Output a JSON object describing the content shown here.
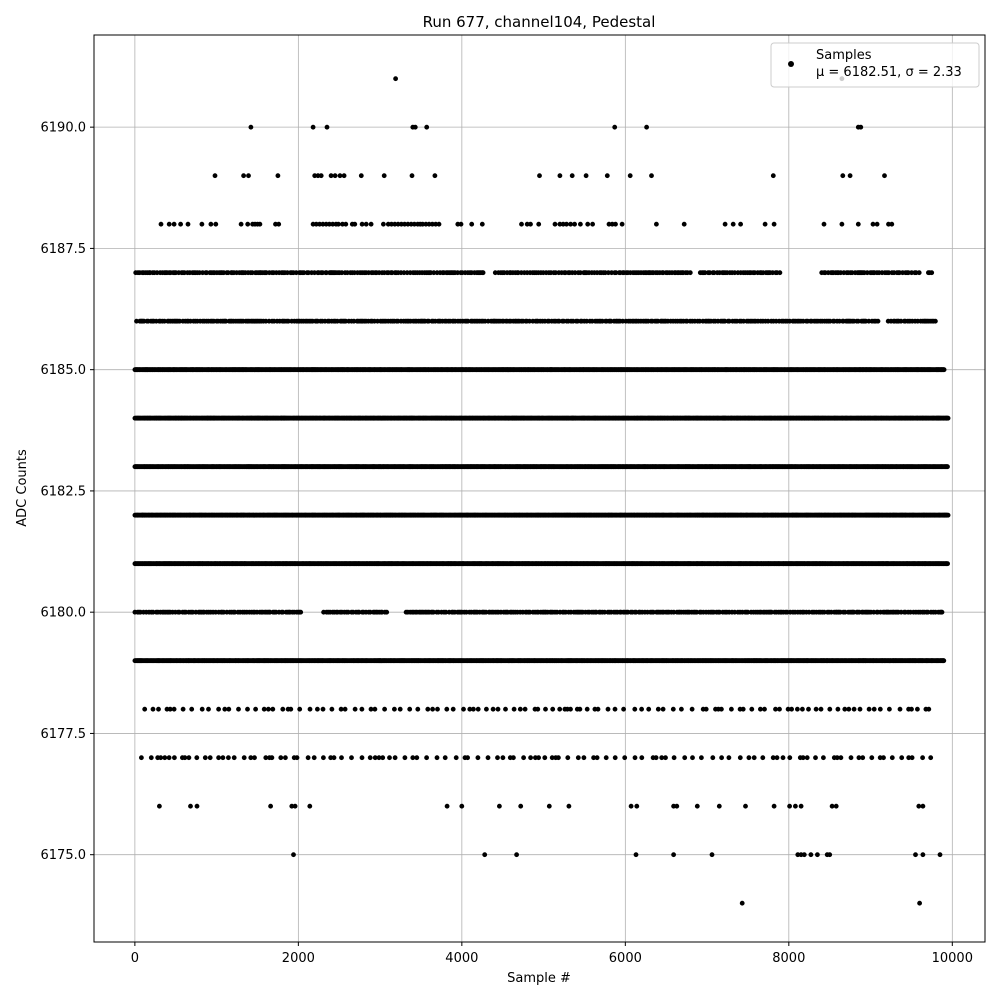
{
  "chart_data": {
    "type": "scatter",
    "title": "Run 677, channel104, Pedestal",
    "xlabel": "Sample #",
    "ylabel": "ADC Counts",
    "xlim": [
      -500,
      10400
    ],
    "ylim": [
      6173.2,
      6191.9
    ],
    "xticks": [
      0,
      2000,
      4000,
      6000,
      8000,
      10000
    ],
    "xtick_labels": [
      "0",
      "2000",
      "4000",
      "6000",
      "8000",
      "10000"
    ],
    "yticks": [
      6175.0,
      6177.5,
      6180.0,
      6182.5,
      6185.0,
      6187.5,
      6190.0
    ],
    "ytick_labels": [
      "6175.0",
      "6177.5",
      "6180.0",
      "6182.5",
      "6185.0",
      "6187.5",
      "6190.0"
    ],
    "grid": true,
    "legend_position": "top-right",
    "series": [
      {
        "name": "Samples",
        "color": "#000000",
        "marker": "circle",
        "stats_label": "μ = 6182.51, σ = 2.33",
        "n_samples": 10000,
        "levels": [
          {
            "y": 6191,
            "x": [
              3190,
              8650
            ]
          },
          {
            "y": 6190,
            "x": [
              1420,
              2180,
              2350,
              3400,
              3430,
              3570,
              5870,
              6260,
              8850,
              8880
            ]
          },
          {
            "y": 6189,
            "x": [
              980,
              1330,
              1390,
              1750,
              2200,
              2240,
              2280,
              2400,
              2450,
              2510,
              2560,
              2770,
              3050,
              3390,
              3670,
              4950,
              5200,
              5350,
              5520,
              5780,
              6060,
              6320,
              7810,
              8660,
              8750,
              9170
            ]
          },
          {
            "y": 6188,
            "x": [
              320,
              420,
              480,
              560,
              650,
              820,
              930,
              990,
              1300,
              1380,
              1440,
              1470,
              1500,
              1530,
              1720,
              1760,
              2180,
              2220,
              2260,
              2300,
              2340,
              2380,
              2420,
              2460,
              2490,
              2540,
              2580,
              2660,
              2690,
              2780,
              2830,
              2890,
              3040,
              3100,
              3140,
              3180,
              3220,
              3260,
              3300,
              3340,
              3380,
              3420,
              3460,
              3490,
              3520,
              3560,
              3600,
              3640,
              3680,
              3720,
              3950,
              3990,
              4120,
              4250,
              4730,
              4800,
              4840,
              4940,
              5140,
              5200,
              5240,
              5280,
              5330,
              5380,
              5450,
              5540,
              5600,
              5800,
              5840,
              5880,
              5960,
              6380,
              6720,
              7220,
              7320,
              7410,
              7710,
              7820,
              8430,
              8650,
              8850,
              9030,
              9080,
              9220,
              9260
            ]
          },
          {
            "y": 6187,
            "density": "mid",
            "gaps": [
              [
                4280,
                4400
              ],
              [
                6800,
                6900
              ],
              [
                7900,
                8400
              ],
              [
                9600,
                9700
              ]
            ],
            "x_start": 10,
            "x_end": 9780
          },
          {
            "y": 6186,
            "density": "mid",
            "gaps": [
              [
                9100,
                9200
              ]
            ],
            "x_start": 20,
            "x_end": 9820
          },
          {
            "y": 6185,
            "density": "high",
            "x_start": 0,
            "x_end": 9900
          },
          {
            "y": 6184,
            "density": "high",
            "x_start": 0,
            "x_end": 9950
          },
          {
            "y": 6183,
            "density": "high",
            "x_start": 0,
            "x_end": 9950
          },
          {
            "y": 6182,
            "density": "high",
            "x_start": 0,
            "x_end": 9950
          },
          {
            "y": 6181,
            "density": "high",
            "x_start": 0,
            "x_end": 9950
          },
          {
            "y": 6180,
            "density": "mid",
            "gaps": [
              [
                2050,
                2300
              ],
              [
                3100,
                3300
              ]
            ],
            "x_start": 0,
            "x_end": 9900
          },
          {
            "y": 6179,
            "density": "high",
            "x_start": 0,
            "x_end": 9900
          },
          {
            "y": 6178,
            "density": "low",
            "x_start": 120,
            "x_end": 9800
          },
          {
            "y": 6177,
            "density": "low",
            "x_start": 80,
            "x_end": 9740
          },
          {
            "y": 6176,
            "x": [
              300,
              680,
              760,
              1660,
              1920,
              1960,
              2140,
              3820,
              4000,
              4460,
              4720,
              5070,
              5310,
              6070,
              6140,
              6590,
              6630,
              6880,
              7150,
              7470,
              7820,
              8010,
              8080,
              8150,
              8530,
              8580,
              9590,
              9640
            ]
          },
          {
            "y": 6175,
            "x": [
              1940,
              4280,
              4670,
              6130,
              6590,
              7060,
              8110,
              8150,
              8190,
              8270,
              8350,
              8470,
              8500,
              9550,
              9640,
              9850
            ]
          },
          {
            "y": 6174,
            "x": [
              7430,
              9600
            ]
          }
        ]
      }
    ]
  }
}
